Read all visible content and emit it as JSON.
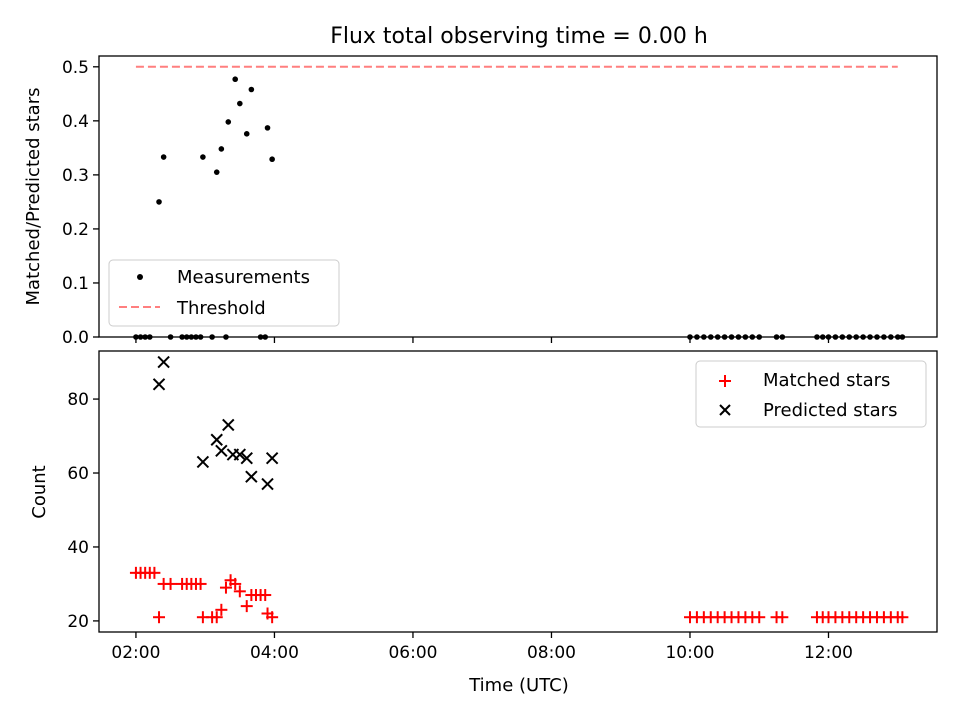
{
  "chart_data": [
    {
      "type": "scatter",
      "title": "Flux total observing time = 0.00 h",
      "xlabel": "",
      "ylabel": "Matched/Predicted stars",
      "xlim": [
        "01:28",
        "13:34"
      ],
      "ylim": [
        0,
        0.52
      ],
      "yticks": [
        0.0,
        0.1,
        0.2,
        0.3,
        0.4,
        0.5
      ],
      "ytick_labels": [
        "0.0",
        "0.1",
        "0.2",
        "0.3",
        "0.4",
        "0.5"
      ],
      "legend": {
        "placement": "lower-left",
        "entries": [
          {
            "label": "Measurements",
            "marker": "dot",
            "color": "#000000"
          },
          {
            "label": "Threshold",
            "marker": "dashed-line",
            "color": "#ff7f7f"
          }
        ]
      },
      "series": [
        {
          "name": "Measurements",
          "color": "#000000",
          "points": [
            [
              "02:00",
              0.0
            ],
            [
              "02:04",
              0.0
            ],
            [
              "02:08",
              0.0
            ],
            [
              "02:12",
              0.0
            ],
            [
              "02:20",
              0.25
            ],
            [
              "02:24",
              0.333
            ],
            [
              "02:30",
              0.0
            ],
            [
              "02:40",
              0.0
            ],
            [
              "02:44",
              0.0
            ],
            [
              "02:48",
              0.0
            ],
            [
              "02:52",
              0.0
            ],
            [
              "02:56",
              0.0
            ],
            [
              "02:58",
              0.333
            ],
            [
              "03:06",
              0.0
            ],
            [
              "03:10",
              0.305
            ],
            [
              "03:14",
              0.348
            ],
            [
              "03:18",
              0.0
            ],
            [
              "03:20",
              0.398
            ],
            [
              "03:26",
              0.477
            ],
            [
              "03:30",
              0.432
            ],
            [
              "03:36",
              0.376
            ],
            [
              "03:40",
              0.458
            ],
            [
              "03:48",
              0.0
            ],
            [
              "03:52",
              0.0
            ],
            [
              "03:54",
              0.387
            ],
            [
              "03:58",
              0.329
            ],
            [
              "10:00",
              0.0
            ],
            [
              "10:06",
              0.0
            ],
            [
              "10:12",
              0.0
            ],
            [
              "10:18",
              0.0
            ],
            [
              "10:24",
              0.0
            ],
            [
              "10:30",
              0.0
            ],
            [
              "10:36",
              0.0
            ],
            [
              "10:42",
              0.0
            ],
            [
              "10:48",
              0.0
            ],
            [
              "10:54",
              0.0
            ],
            [
              "11:00",
              0.0
            ],
            [
              "11:15",
              0.0
            ],
            [
              "11:20",
              0.0
            ],
            [
              "11:50",
              0.0
            ],
            [
              "11:55",
              0.0
            ],
            [
              "12:00",
              0.0
            ],
            [
              "12:06",
              0.0
            ],
            [
              "12:12",
              0.0
            ],
            [
              "12:18",
              0.0
            ],
            [
              "12:24",
              0.0
            ],
            [
              "12:30",
              0.0
            ],
            [
              "12:36",
              0.0
            ],
            [
              "12:42",
              0.0
            ],
            [
              "12:48",
              0.0
            ],
            [
              "12:54",
              0.0
            ],
            [
              "13:00",
              0.0
            ],
            [
              "13:04",
              0.0
            ]
          ]
        },
        {
          "name": "Threshold",
          "color": "#ff7f7f",
          "style": "dashed",
          "points": [
            [
              "02:00",
              0.5
            ],
            [
              "13:00",
              0.5
            ]
          ]
        }
      ]
    },
    {
      "type": "scatter",
      "title": "",
      "xlabel": "Time (UTC)",
      "ylabel": "Count",
      "xlim": [
        "01:28",
        "13:34"
      ],
      "ylim": [
        17,
        93
      ],
      "yticks": [
        20,
        40,
        60,
        80
      ],
      "ytick_labels": [
        "20",
        "40",
        "60",
        "80"
      ],
      "xticks": [
        "02:00",
        "04:00",
        "06:00",
        "08:00",
        "10:00",
        "12:00"
      ],
      "xtick_labels": [
        "02:00",
        "04:00",
        "06:00",
        "08:00",
        "10:00",
        "12:00"
      ],
      "legend": {
        "placement": "upper-right",
        "entries": [
          {
            "label": "Matched stars",
            "marker": "plus",
            "color": "#ff0000"
          },
          {
            "label": "Predicted stars",
            "marker": "x",
            "color": "#000000"
          }
        ]
      },
      "series": [
        {
          "name": "Matched stars",
          "color": "#ff0000",
          "marker": "plus",
          "points": [
            [
              "02:00",
              33
            ],
            [
              "02:04",
              33
            ],
            [
              "02:08",
              33
            ],
            [
              "02:12",
              33
            ],
            [
              "02:16",
              33
            ],
            [
              "02:20",
              21
            ],
            [
              "02:24",
              30
            ],
            [
              "02:30",
              30
            ],
            [
              "02:40",
              30
            ],
            [
              "02:44",
              30
            ],
            [
              "02:48",
              30
            ],
            [
              "02:52",
              30
            ],
            [
              "02:56",
              30
            ],
            [
              "02:58",
              21
            ],
            [
              "03:06",
              21
            ],
            [
              "03:10",
              21
            ],
            [
              "03:14",
              23
            ],
            [
              "03:18",
              29
            ],
            [
              "03:22",
              31
            ],
            [
              "03:26",
              30
            ],
            [
              "03:30",
              28
            ],
            [
              "03:36",
              24
            ],
            [
              "03:40",
              27
            ],
            [
              "03:44",
              27
            ],
            [
              "03:48",
              27
            ],
            [
              "03:52",
              27
            ],
            [
              "03:54",
              22
            ],
            [
              "03:58",
              21
            ],
            [
              "10:00",
              21
            ],
            [
              "10:06",
              21
            ],
            [
              "10:12",
              21
            ],
            [
              "10:18",
              21
            ],
            [
              "10:24",
              21
            ],
            [
              "10:30",
              21
            ],
            [
              "10:36",
              21
            ],
            [
              "10:42",
              21
            ],
            [
              "10:48",
              21
            ],
            [
              "10:54",
              21
            ],
            [
              "11:00",
              21
            ],
            [
              "11:15",
              21
            ],
            [
              "11:20",
              21
            ],
            [
              "11:50",
              21
            ],
            [
              "11:55",
              21
            ],
            [
              "12:00",
              21
            ],
            [
              "12:06",
              21
            ],
            [
              "12:12",
              21
            ],
            [
              "12:18",
              21
            ],
            [
              "12:24",
              21
            ],
            [
              "12:30",
              21
            ],
            [
              "12:36",
              21
            ],
            [
              "12:42",
              21
            ],
            [
              "12:48",
              21
            ],
            [
              "12:54",
              21
            ],
            [
              "13:00",
              21
            ],
            [
              "13:04",
              21
            ]
          ]
        },
        {
          "name": "Predicted stars",
          "color": "#000000",
          "marker": "x",
          "points": [
            [
              "02:20",
              84
            ],
            [
              "02:24",
              90
            ],
            [
              "02:58",
              63
            ],
            [
              "03:10",
              69
            ],
            [
              "03:14",
              66
            ],
            [
              "03:20",
              73
            ],
            [
              "03:24",
              65
            ],
            [
              "03:30",
              65
            ],
            [
              "03:36",
              64
            ],
            [
              "03:40",
              59
            ],
            [
              "03:54",
              57
            ],
            [
              "03:58",
              64
            ]
          ]
        }
      ]
    }
  ]
}
